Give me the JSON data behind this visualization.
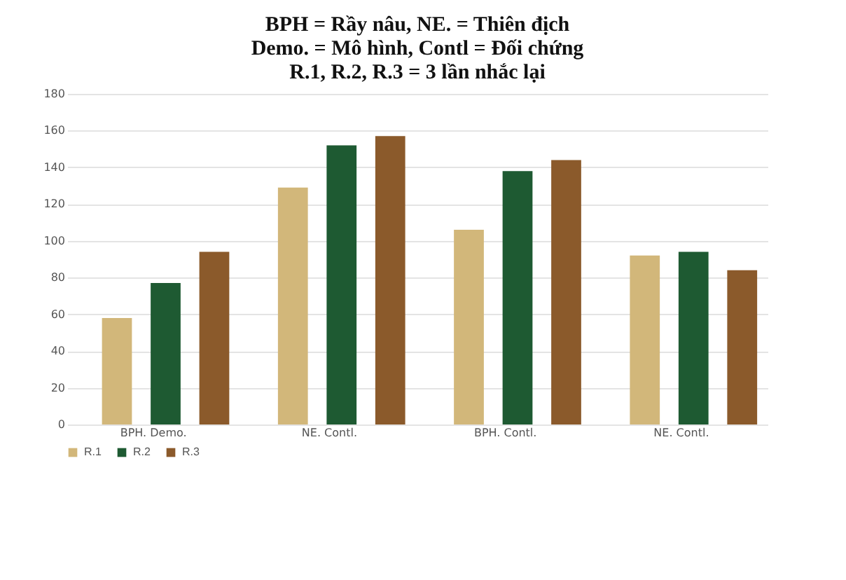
{
  "chart_data": {
    "type": "bar",
    "title": [
      "BPH = Rầy nâu, NE. = Thiên địch",
      "Demo. = Mô hình, Contl = Đối chứng",
      "R.1, R.2, R.3 = 3 lần nhắc lại"
    ],
    "categories": [
      "BPH. Demo.",
      "NE. Contl.",
      "BPH. Contl.",
      "NE. Contl."
    ],
    "series": [
      {
        "name": "R.1",
        "color": "#d2b77a",
        "values": [
          58,
          129,
          106,
          92
        ]
      },
      {
        "name": "R.2",
        "color": "#1e5a32",
        "values": [
          77,
          152,
          138,
          94
        ]
      },
      {
        "name": "R.3",
        "color": "#8b5a2b",
        "values": [
          94,
          157,
          144,
          84
        ]
      }
    ],
    "ylim": [
      0,
      180
    ],
    "yticks": [
      0,
      20,
      40,
      60,
      80,
      100,
      120,
      140,
      160,
      180
    ],
    "grid": "y",
    "legend": "bottom"
  }
}
